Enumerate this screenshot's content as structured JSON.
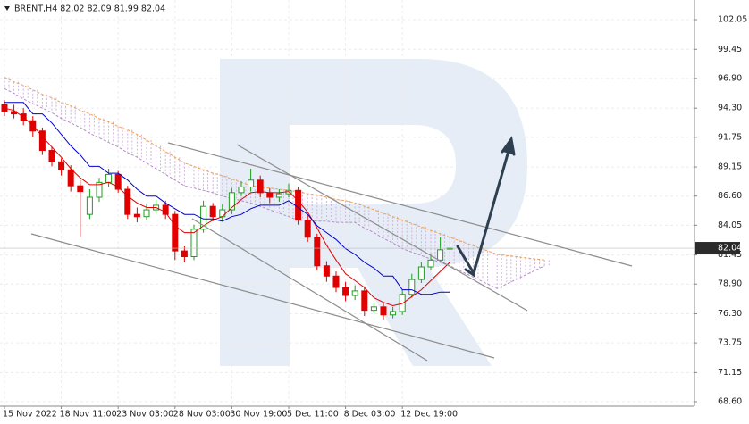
{
  "chart_data": {
    "type": "candlestick",
    "title": "BRENT,H4  82.02 82.09 81.99 82.04",
    "xlim": [
      -0.47,
      72.83
    ],
    "xticks": [
      {
        "value": 0,
        "label": "15 Nov 2022"
      },
      {
        "value": 6,
        "label": "18 Nov 11:00"
      },
      {
        "value": 12,
        "label": "23 Nov 03:00"
      },
      {
        "value": 18,
        "label": "28 Nov 03:00"
      },
      {
        "value": 24,
        "label": "30 Nov 19:00"
      },
      {
        "value": 30,
        "label": "5 Dec 11:00"
      },
      {
        "value": 36,
        "label": "8 Dec 03:00"
      },
      {
        "value": 42,
        "label": "12 Dec 19:00"
      }
    ],
    "ylim": [
      68.21,
      103.77
    ],
    "yticks": [
      102.05,
      99.45,
      {
        "value": 96.9,
        "label": "96.90"
      },
      {
        "value": 94.3,
        "label": "94.30"
      },
      91.75,
      89.15,
      {
        "value": 86.6,
        "label": "86.60"
      },
      84.05,
      81.45,
      {
        "value": 78.9,
        "label": "78.90"
      },
      {
        "value": 76.3,
        "label": "76.30"
      },
      73.75,
      71.15,
      {
        "value": 68.6,
        "label": "68.60"
      }
    ],
    "grid": true,
    "up_color": "#1f9e1f",
    "down_color": "#e00000",
    "open": [
      94.6,
      94.0,
      93.8,
      93.2,
      92.3,
      90.6,
      89.6,
      88.9,
      87.5,
      85.0,
      86.5,
      87.8,
      88.5,
      87.2,
      85.0,
      84.8,
      85.4,
      85.8,
      85.0,
      81.8,
      81.3,
      83.7,
      85.7,
      84.8,
      85.4,
      86.9,
      87.4,
      88.0,
      86.9,
      86.5,
      86.8,
      87.1,
      84.5,
      83.0,
      80.5,
      79.6,
      78.6,
      77.9,
      78.3,
      76.6,
      76.9,
      76.2,
      76.5,
      78.0,
      79.3,
      80.4,
      81.0,
      82.02
    ],
    "high": [
      95.0,
      94.6,
      94.3,
      93.6,
      92.6,
      90.9,
      89.9,
      89.3,
      88.0,
      87.2,
      88.2,
      89.0,
      88.8,
      87.5,
      85.6,
      85.9,
      86.3,
      86.2,
      85.3,
      82.2,
      84.1,
      86.2,
      86.0,
      85.9,
      87.3,
      87.9,
      89.0,
      88.4,
      87.3,
      87.2,
      87.7,
      87.4,
      84.9,
      83.3,
      80.9,
      80.0,
      79.1,
      78.8,
      78.7,
      77.3,
      77.3,
      76.9,
      78.4,
      79.8,
      80.8,
      81.5,
      83.0,
      82.09
    ],
    "low": [
      93.6,
      93.4,
      92.8,
      91.8,
      90.2,
      89.2,
      88.4,
      87.0,
      83.0,
      84.6,
      86.1,
      87.4,
      86.9,
      84.6,
      84.3,
      84.5,
      85.1,
      84.6,
      81.0,
      80.8,
      81.0,
      83.4,
      84.4,
      84.4,
      85.0,
      86.6,
      87.0,
      86.5,
      86.0,
      86.1,
      86.5,
      84.1,
      82.6,
      80.1,
      79.1,
      78.2,
      77.4,
      77.5,
      76.1,
      76.3,
      75.8,
      75.9,
      76.2,
      77.7,
      79.0,
      80.1,
      80.8,
      81.99
    ],
    "close": [
      94.0,
      93.8,
      93.2,
      92.3,
      90.6,
      89.6,
      88.9,
      87.5,
      87.0,
      86.5,
      87.8,
      88.5,
      87.2,
      85.0,
      84.8,
      85.4,
      85.8,
      85.0,
      81.8,
      81.3,
      83.7,
      85.7,
      84.8,
      85.4,
      86.9,
      87.4,
      88.0,
      86.9,
      86.5,
      86.8,
      87.1,
      84.5,
      83.0,
      80.5,
      79.6,
      78.6,
      77.9,
      78.3,
      76.6,
      76.9,
      76.2,
      76.5,
      78.0,
      79.3,
      80.4,
      81.0,
      81.9,
      82.04
    ],
    "series": [
      {
        "color": "#e00000",
        "values": [
          94.3,
          94.1,
          93.5,
          92.8,
          91.8,
          90.9,
          90.0,
          89.0,
          88.2,
          87.6,
          87.6,
          87.8,
          87.4,
          86.6,
          86.0,
          85.6,
          85.6,
          85.2,
          84.0,
          83.4,
          83.4,
          84.0,
          84.5,
          84.8,
          85.6,
          86.3,
          86.9,
          87.0,
          86.9,
          86.9,
          87.0,
          86.2,
          85.2,
          83.8,
          82.3,
          81.0,
          79.8,
          79.2,
          78.6,
          77.7,
          77.3,
          77.0,
          77.2,
          77.8,
          78.4,
          79.2,
          80.0,
          80.8
        ]
      },
      {
        "color": "#0000c8",
        "values": [
          94.8,
          94.8,
          94.8,
          93.8,
          93.8,
          93.0,
          92.0,
          91.0,
          90.2,
          89.2,
          89.2,
          88.6,
          88.6,
          88.0,
          87.2,
          86.6,
          86.6,
          86.0,
          85.5,
          85.0,
          85.0,
          84.6,
          84.6,
          84.4,
          84.8,
          85.0,
          85.5,
          85.8,
          85.8,
          85.8,
          86.2,
          85.6,
          85.0,
          84.0,
          83.4,
          82.8,
          82.0,
          81.5,
          80.8,
          80.3,
          79.6,
          79.6,
          78.4,
          78.4,
          78.0,
          78.0,
          78.2,
          78.2
        ]
      },
      {
        "color": "#f0a050",
        "dashed": true,
        "values": [
          97.0,
          96.6,
          96.3,
          95.9,
          95.5,
          95.2,
          94.8,
          94.5,
          94.1,
          93.8,
          93.4,
          93.1,
          92.7,
          92.4,
          92.0,
          91.5,
          91.0,
          90.5,
          90.0,
          89.5,
          89.2,
          88.9,
          88.6,
          88.4,
          88.1,
          87.8,
          87.5,
          87.4,
          87.3,
          87.2,
          87.1,
          87.0,
          86.8,
          86.7,
          86.5,
          86.3,
          86.2,
          86.0,
          85.7,
          85.4,
          85.1,
          84.8,
          84.5,
          84.2,
          83.9,
          83.6,
          83.3,
          83.0,
          82.7,
          82.4,
          82.1,
          81.8,
          81.5,
          81.4,
          81.3,
          81.2,
          81.1,
          81.0
        ]
      },
      {
        "color": "#b58ac8",
        "dashed": true,
        "values": [
          96.0,
          95.6,
          95.1,
          94.7,
          94.3,
          93.9,
          93.4,
          93.0,
          92.6,
          92.1,
          91.7,
          91.3,
          90.9,
          90.4,
          90.0,
          89.5,
          89.0,
          88.5,
          88.0,
          87.5,
          87.3,
          87.1,
          86.9,
          86.6,
          86.4,
          86.2,
          86.0,
          85.7,
          85.4,
          85.1,
          84.8,
          84.5,
          84.5,
          84.4,
          84.4,
          84.3,
          84.3,
          84.3,
          83.8,
          83.4,
          82.9,
          82.5,
          82.0,
          81.7,
          81.4,
          81.1,
          80.8,
          80.5,
          80.1,
          79.7,
          79.3,
          78.9,
          78.5,
          78.9,
          79.3,
          79.7,
          80.1,
          80.5
        ]
      }
    ],
    "cloud_color": "#cfb3dd",
    "last_price": 82.04
  }
}
